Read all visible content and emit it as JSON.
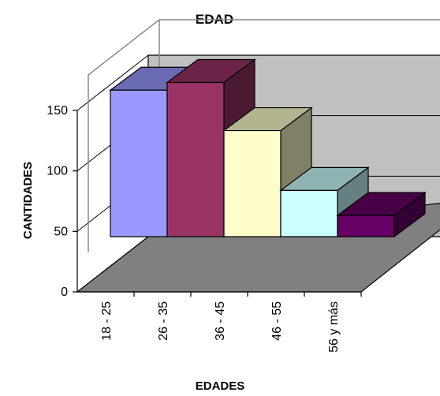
{
  "chart_data": {
    "type": "bar",
    "title": "EDAD",
    "xlabel": "EDADES",
    "ylabel": "CANTIDADES",
    "categories": [
      "18 - 25",
      "26 - 35",
      "36 - 45",
      "46 - 55",
      "56 y más"
    ],
    "values": [
      152,
      160,
      110,
      48,
      22
    ],
    "ylim": [
      0,
      150
    ],
    "yticks": [
      0,
      50,
      100,
      150
    ],
    "grid": true,
    "legend": "none",
    "colors": [
      "#9999ff",
      "#993366",
      "#ffffcc",
      "#ccffff",
      "#660066"
    ],
    "colors_top": [
      "#6a6ab3",
      "#6b2347",
      "#b3b38f",
      "#8fb3b3",
      "#470047"
    ],
    "colors_side": [
      "#4c4c80",
      "#4c1933",
      "#808066",
      "#668080",
      "#330033"
    ],
    "wall_color": "#c0c0c0",
    "floor_color": "#808080"
  }
}
